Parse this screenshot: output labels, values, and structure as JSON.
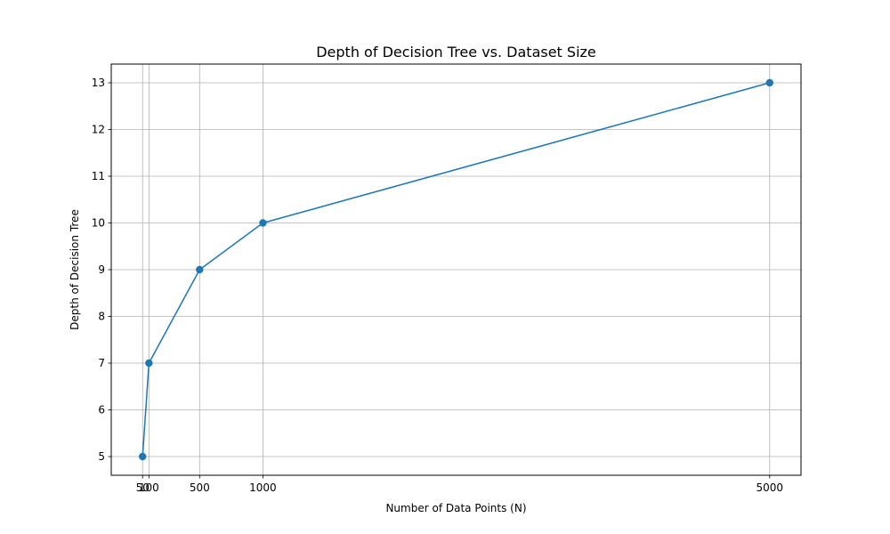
{
  "chart_data": {
    "type": "line",
    "title": "Depth of Decision Tree vs. Dataset Size",
    "xlabel": "Number of Data Points (N)",
    "ylabel": "Depth of Decision Tree",
    "x": [
      50,
      100,
      500,
      1000,
      5000
    ],
    "y": [
      5,
      7,
      9,
      10,
      13
    ],
    "xticks": [
      50,
      100,
      500,
      1000,
      5000
    ],
    "yticks": [
      5,
      6,
      7,
      8,
      9,
      10,
      11,
      12,
      13
    ],
    "xlim": [
      -197.5,
      5247.5
    ],
    "ylim": [
      4.6,
      13.4
    ],
    "grid": true,
    "markers": true,
    "series_color": "#1f77b4",
    "grid_color": "#b0b0b0"
  }
}
